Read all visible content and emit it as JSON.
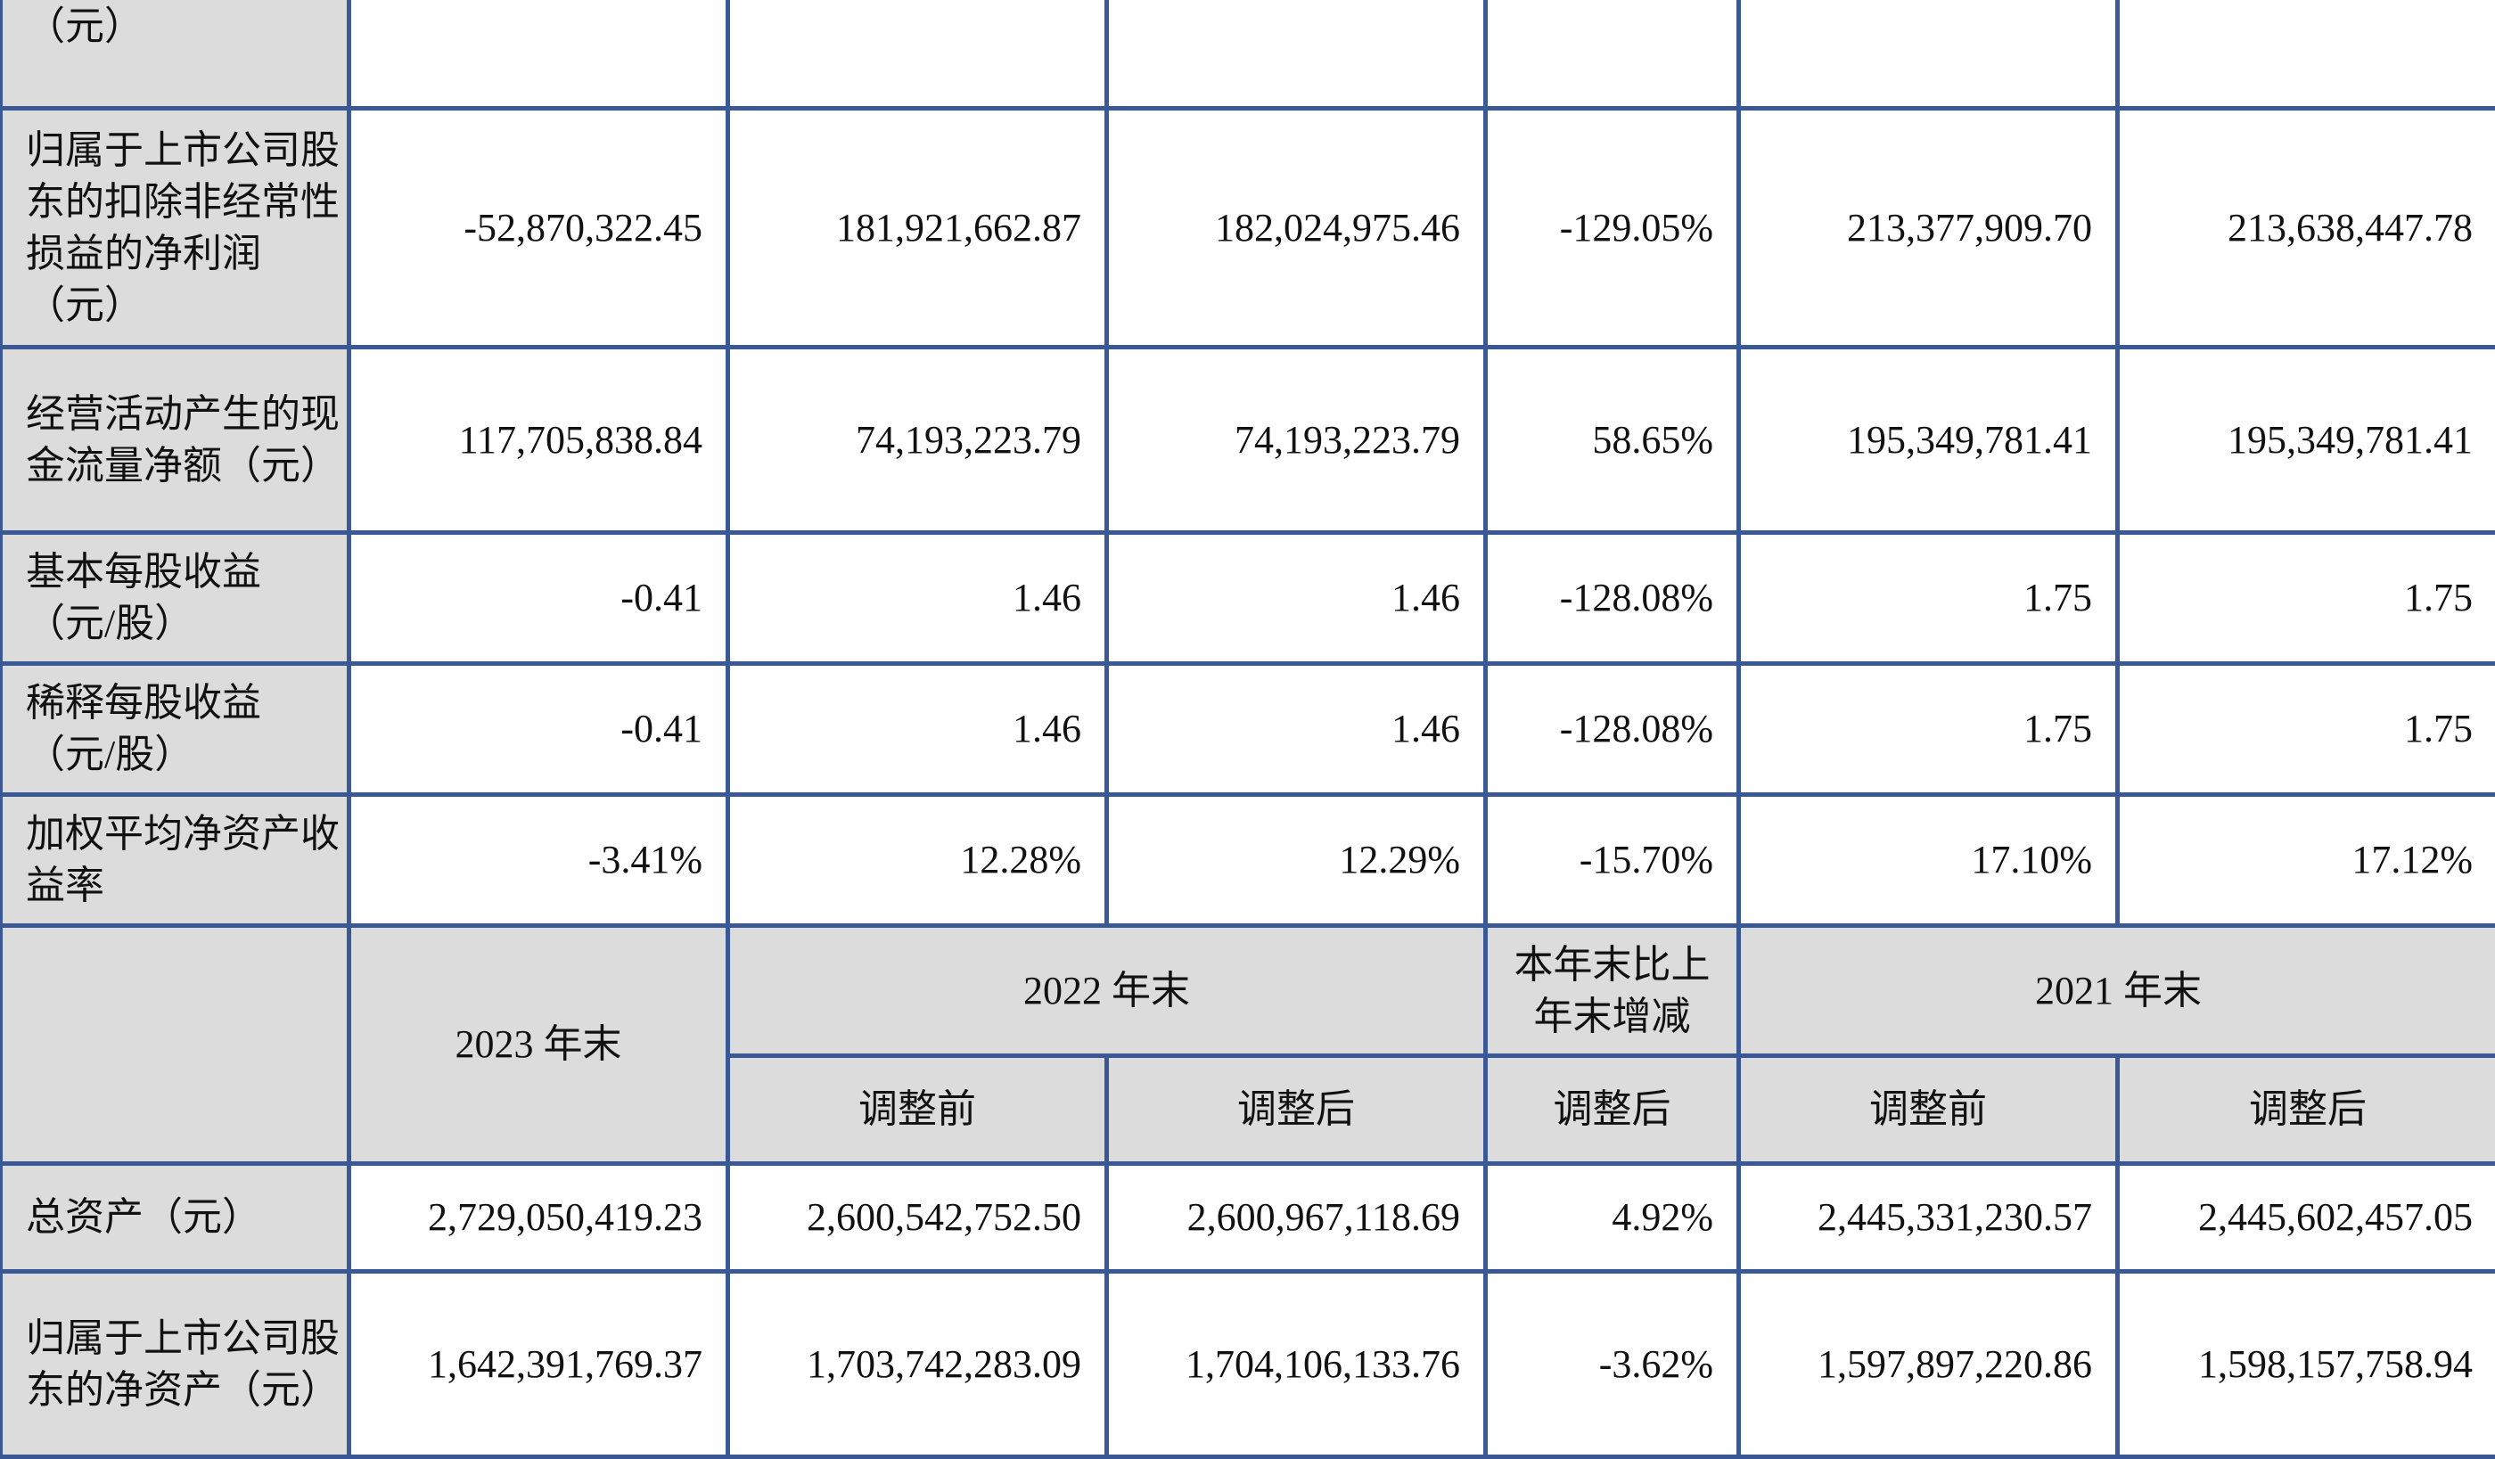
{
  "rows_top": [
    {
      "label": "（元）",
      "values": [
        "",
        "",
        "",
        "",
        "",
        ""
      ]
    },
    {
      "label": "归属于上市公司股东的扣除非经常性损益的净利润（元）",
      "values": [
        "-52,870,322.45",
        "181,921,662.87",
        "182,024,975.46",
        "-129.05%",
        "213,377,909.70",
        "213,638,447.78"
      ]
    },
    {
      "label": "经营活动产生的现金流量净额（元）",
      "values": [
        "117,705,838.84",
        "74,193,223.79",
        "74,193,223.79",
        "58.65%",
        "195,349,781.41",
        "195,349,781.41"
      ]
    },
    {
      "label": "基本每股收益（元/股）",
      "values": [
        "-0.41",
        "1.46",
        "1.46",
        "-128.08%",
        "1.75",
        "1.75"
      ]
    },
    {
      "label": "稀释每股收益（元/股）",
      "values": [
        "-0.41",
        "1.46",
        "1.46",
        "-128.08%",
        "1.75",
        "1.75"
      ]
    },
    {
      "label": "加权平均净资产收益率",
      "values": [
        "-3.41%",
        "12.28%",
        "12.29%",
        "-15.70%",
        "17.10%",
        "17.12%"
      ]
    }
  ],
  "header": {
    "col_2023": "2023 年末",
    "col_2022": "2022 年末",
    "col_change": "本年末比上年末增减",
    "col_2021": "2021 年末",
    "before_adjust": "调整前",
    "after_adjust": "调整后"
  },
  "rows_bottom": [
    {
      "label": "总资产（元）",
      "values": [
        "2,729,050,419.23",
        "2,600,542,752.50",
        "2,600,967,118.69",
        "4.92%",
        "2,445,331,230.57",
        "2,445,602,457.05"
      ]
    },
    {
      "label": "归属于上市公司股东的净资产（元）",
      "values": [
        "1,642,391,769.37",
        "1,703,742,283.09",
        "1,704,106,133.76",
        "-3.62%",
        "1,597,897,220.86",
        "1,598,157,758.94"
      ]
    }
  ]
}
